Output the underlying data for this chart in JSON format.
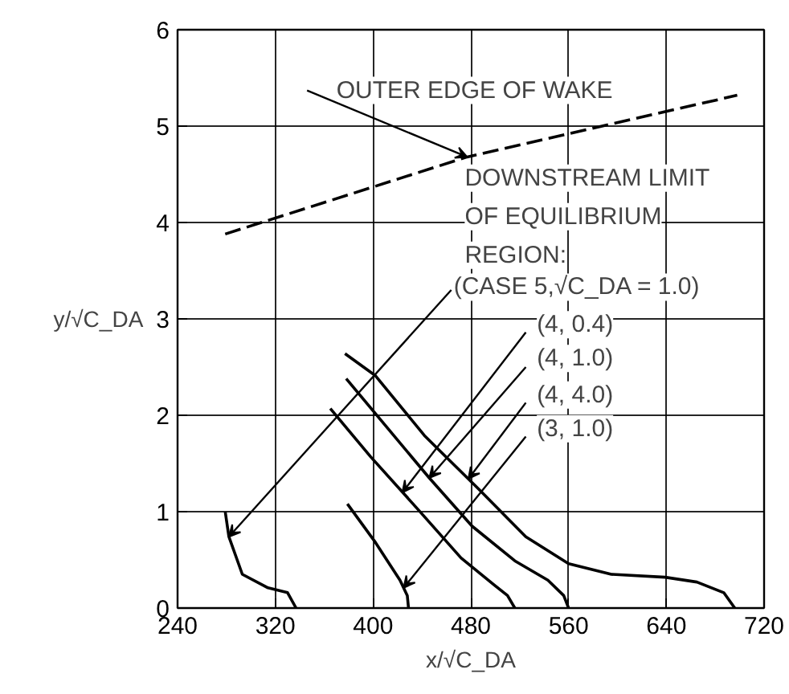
{
  "chart_data": {
    "type": "line",
    "xlabel": "x/√C_DA",
    "ylabel": "y/√C_DA",
    "xlim": [
      240,
      720
    ],
    "ylim": [
      0,
      6
    ],
    "xticks": [
      240,
      320,
      400,
      480,
      560,
      640,
      720
    ],
    "yticks": [
      0,
      1,
      2,
      3,
      4,
      5,
      6
    ],
    "grid": true,
    "series": [
      {
        "color": "#000000",
        "line_style": "dashed",
        "x": [
          279,
          477,
          698
        ],
        "values": [
          3.88,
          4.68,
          5.32
        ]
      },
      {
        "color": "#000000",
        "x": [
          279,
          282,
          293,
          314,
          330,
          337
        ],
        "values": [
          1.0,
          0.74,
          0.35,
          0.21,
          0.16,
          0
        ]
      },
      {
        "color": "#000000",
        "x": [
          379,
          402,
          422,
          428,
          429
        ],
        "values": [
          1.08,
          0.68,
          0.29,
          0.13,
          0
        ]
      },
      {
        "color": "#000000",
        "x": [
          365,
          398,
          437,
          472,
          499,
          510,
          516
        ],
        "values": [
          2.07,
          1.57,
          1.02,
          0.52,
          0.24,
          0.13,
          0
        ]
      },
      {
        "color": "#000000",
        "x": [
          378,
          411,
          446,
          481,
          516,
          543,
          556,
          560
        ],
        "values": [
          2.38,
          1.88,
          1.35,
          0.85,
          0.49,
          0.29,
          0.13,
          0
        ]
      },
      {
        "color": "#000000",
        "x": [
          377,
          402,
          442,
          486,
          525,
          560,
          595,
          639,
          665,
          687,
          696
        ],
        "values": [
          2.64,
          2.41,
          1.79,
          1.24,
          0.74,
          0.46,
          0.35,
          0.32,
          0.27,
          0.16,
          0
        ]
      }
    ],
    "annotations": [
      {
        "text": "OUTER EDGE OF WAKE",
        "x": 477,
        "y": 4.68
      },
      "DOWNSTREAM LIMIT\nOF EQUILIBRIUM\nREGION:",
      {
        "text": "(CASE 5,√C_DA = 1.0)",
        "x": 282,
        "y": 0.74
      },
      {
        "text": "(4, 0.4)",
        "x": 424,
        "y": 1.2
      },
      {
        "text": "(4, 1.0)",
        "x": 446,
        "y": 1.35
      },
      {
        "text": "(4, 4.0)",
        "x": 478,
        "y": 1.34
      },
      {
        "text": "(3, 1.0)",
        "x": 425,
        "y": 0.21
      }
    ]
  }
}
